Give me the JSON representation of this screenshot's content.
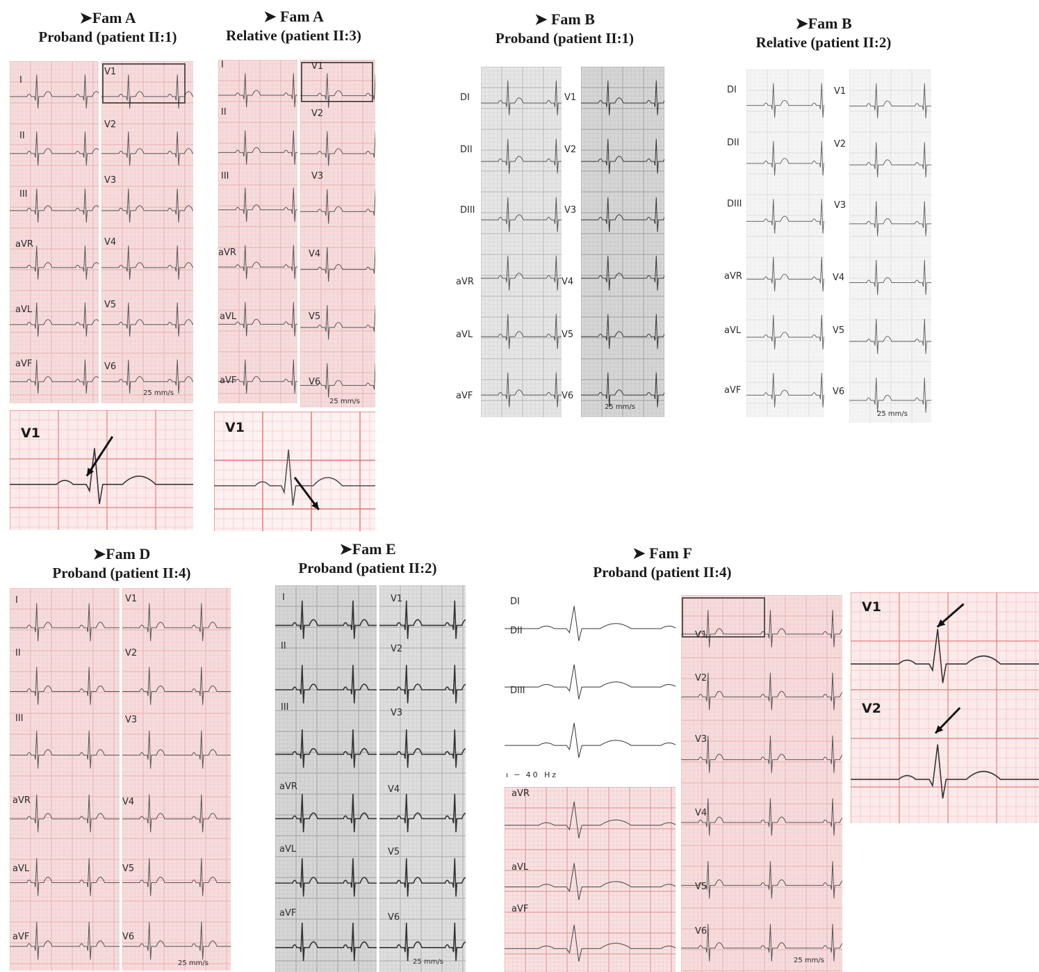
{
  "colors": {
    "pink": "#f6dcdc",
    "pink_grid": "#e9b7b7",
    "red_grid": "#e88a8a",
    "gray": "#e2e2e2",
    "gray_grid": "#bdbdbd",
    "trace": "#4a4a4a"
  },
  "headers": {
    "famA1": {
      "fam": "➤Fam A",
      "sub": "Proband (patient II:1)"
    },
    "famA2": {
      "fam": "➤ Fam A",
      "sub": "Relative (patient II:3)"
    },
    "famB1": {
      "fam": "➤ Fam B",
      "sub": "Proband (patient II:1)"
    },
    "famB2": {
      "fam": "➤Fam B",
      "sub": "Relative (patient II:2)"
    },
    "famD": {
      "fam": "➤Fam D",
      "sub": "Proband (patient II:4)"
    },
    "famE": {
      "fam": "➤Fam E",
      "sub": "Proband (patient II:2)"
    },
    "famF": {
      "fam": "➤ Fam F",
      "sub": "Proband (patient II:4)"
    }
  },
  "leads": {
    "limb_roman": [
      "I",
      "II",
      "III",
      "aVR",
      "aVL",
      "aVF"
    ],
    "limb_d": [
      "DI",
      "DII",
      "DIII",
      "aVR",
      "aVL",
      "aVF"
    ],
    "precordial": [
      "V1",
      "V2",
      "V3",
      "V4",
      "V5",
      "V6"
    ]
  },
  "speed": "25 mm/s",
  "zoom": {
    "v1": "V1",
    "v2": "V2"
  },
  "filter_note": "ı ─ 40 Hz"
}
